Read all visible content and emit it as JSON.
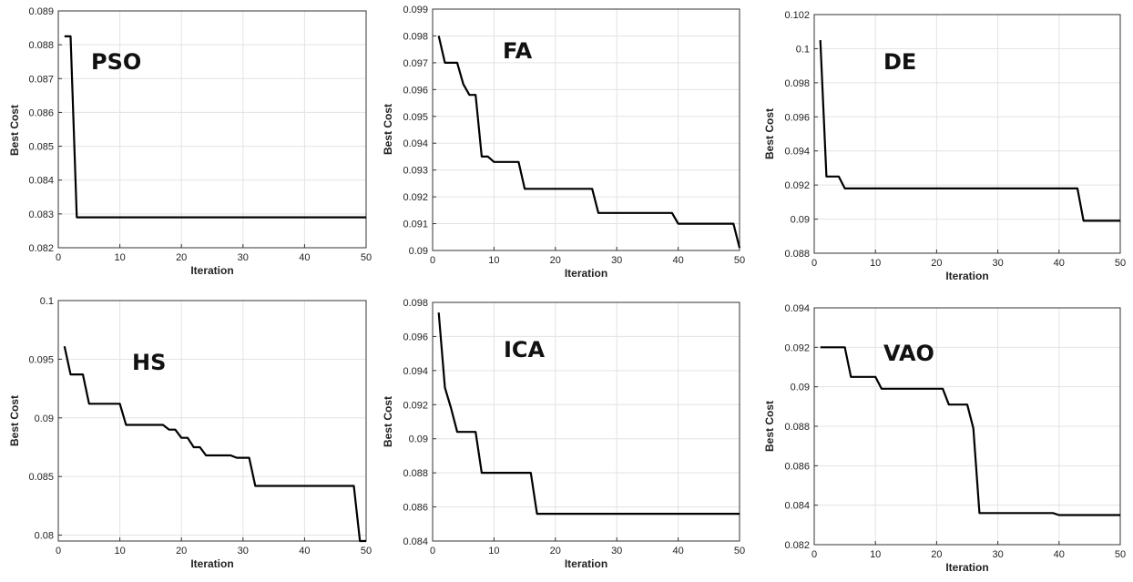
{
  "chart_data": [
    {
      "type": "line",
      "annotation": "PSO",
      "xlabel": "Iteration",
      "ylabel": "Best Cost",
      "xlim": [
        0,
        50
      ],
      "ylim": [
        0.082,
        0.089
      ],
      "xticks": [
        "0",
        "10",
        "20",
        "30",
        "40",
        "50"
      ],
      "yticks": [
        "0.082",
        "0.083",
        "0.084",
        "0.085",
        "0.086",
        "0.087",
        "0.088",
        "0.089"
      ],
      "grid": true,
      "series": [
        {
          "points": [
            [
              1,
              0.08825
            ],
            [
              2,
              0.08825
            ],
            [
              3,
              0.0829
            ],
            [
              50,
              0.0829
            ]
          ]
        }
      ]
    },
    {
      "type": "line",
      "annotation": "FA",
      "xlabel": "Iteration",
      "ylabel": "Best Cost",
      "xlim": [
        0,
        50
      ],
      "ylim": [
        0.09,
        0.099
      ],
      "xticks": [
        "0",
        "10",
        "20",
        "30",
        "40",
        "50"
      ],
      "yticks": [
        "0.09",
        "0.091",
        "0.092",
        "0.093",
        "0.094",
        "0.095",
        "0.096",
        "0.097",
        "0.098",
        "0.099"
      ],
      "grid": true,
      "series": [
        {
          "points": [
            [
              1,
              0.098
            ],
            [
              2,
              0.097
            ],
            [
              4,
              0.097
            ],
            [
              5,
              0.0962
            ],
            [
              6,
              0.0958
            ],
            [
              7,
              0.0958
            ],
            [
              8,
              0.0935
            ],
            [
              9,
              0.0935
            ],
            [
              10,
              0.0933
            ],
            [
              14,
              0.0933
            ],
            [
              15,
              0.0923
            ],
            [
              26,
              0.0923
            ],
            [
              27,
              0.0914
            ],
            [
              39,
              0.0914
            ],
            [
              40,
              0.091
            ],
            [
              49,
              0.091
            ],
            [
              50,
              0.0901
            ]
          ]
        }
      ]
    },
    {
      "type": "line",
      "annotation": "DE",
      "xlabel": "Iteration",
      "ylabel": "Best Cost",
      "xlim": [
        0,
        50
      ],
      "ylim": [
        0.088,
        0.102
      ],
      "xticks": [
        "0",
        "10",
        "20",
        "30",
        "40",
        "50"
      ],
      "yticks": [
        "0.088",
        "0.09",
        "0.092",
        "0.094",
        "0.096",
        "0.098",
        "0.1",
        "0.102"
      ],
      "grid": true,
      "series": [
        {
          "points": [
            [
              1,
              0.1005
            ],
            [
              2,
              0.0925
            ],
            [
              4,
              0.0925
            ],
            [
              5,
              0.0918
            ],
            [
              43,
              0.0918
            ],
            [
              44,
              0.0899
            ],
            [
              50,
              0.0899
            ]
          ]
        }
      ]
    },
    {
      "type": "line",
      "annotation": "HS",
      "xlabel": "Iteration",
      "ylabel": "Best Cost",
      "xlim": [
        0,
        50
      ],
      "ylim": [
        0.0795,
        0.1
      ],
      "xticks": [
        "0",
        "10",
        "20",
        "30",
        "40",
        "50"
      ],
      "yticks": [
        "0.08",
        "0.085",
        "0.09",
        "0.095",
        "0.1"
      ],
      "grid": true,
      "series": [
        {
          "points": [
            [
              1,
              0.0961
            ],
            [
              2,
              0.0937
            ],
            [
              4,
              0.0937
            ],
            [
              5,
              0.0912
            ],
            [
              10,
              0.0912
            ],
            [
              11,
              0.0894
            ],
            [
              17,
              0.0894
            ],
            [
              18,
              0.089
            ],
            [
              19,
              0.089
            ],
            [
              20,
              0.0883
            ],
            [
              21,
              0.0883
            ],
            [
              22,
              0.0875
            ],
            [
              23,
              0.0875
            ],
            [
              24,
              0.0868
            ],
            [
              28,
              0.0868
            ],
            [
              29,
              0.0866
            ],
            [
              31,
              0.0866
            ],
            [
              32,
              0.0842
            ],
            [
              48,
              0.0842
            ],
            [
              49,
              0.0795
            ],
            [
              50,
              0.0795
            ]
          ]
        }
      ]
    },
    {
      "type": "line",
      "annotation": "ICA",
      "xlabel": "Iteration",
      "ylabel": "Best Cost",
      "xlim": [
        0,
        50
      ],
      "ylim": [
        0.084,
        0.098
      ],
      "xticks": [
        "0",
        "10",
        "20",
        "30",
        "40",
        "50"
      ],
      "yticks": [
        "0.084",
        "0.086",
        "0.088",
        "0.09",
        "0.092",
        "0.094",
        "0.096",
        "0.098"
      ],
      "grid": true,
      "series": [
        {
          "points": [
            [
              1,
              0.0974
            ],
            [
              2,
              0.093
            ],
            [
              3,
              0.0918
            ],
            [
              4,
              0.0904
            ],
            [
              7,
              0.0904
            ],
            [
              8,
              0.088
            ],
            [
              16,
              0.088
            ],
            [
              17,
              0.0856
            ],
            [
              50,
              0.0856
            ]
          ]
        }
      ]
    },
    {
      "type": "line",
      "annotation": "VAO",
      "xlabel": "Iteration",
      "ylabel": "Best Cost",
      "xlim": [
        0,
        50
      ],
      "ylim": [
        0.082,
        0.094
      ],
      "xticks": [
        "0",
        "10",
        "20",
        "30",
        "40",
        "50"
      ],
      "yticks": [
        "0.082",
        "0.084",
        "0.086",
        "0.088",
        "0.09",
        "0.092",
        "0.094"
      ],
      "grid": true,
      "series": [
        {
          "points": [
            [
              1,
              0.092
            ],
            [
              5,
              0.092
            ],
            [
              6,
              0.0905
            ],
            [
              10,
              0.0905
            ],
            [
              11,
              0.0899
            ],
            [
              21,
              0.0899
            ],
            [
              22,
              0.0891
            ],
            [
              25,
              0.0891
            ],
            [
              26,
              0.0879
            ],
            [
              27,
              0.0836
            ],
            [
              39,
              0.0836
            ],
            [
              40,
              0.0835
            ],
            [
              50,
              0.0835
            ]
          ]
        }
      ]
    }
  ]
}
